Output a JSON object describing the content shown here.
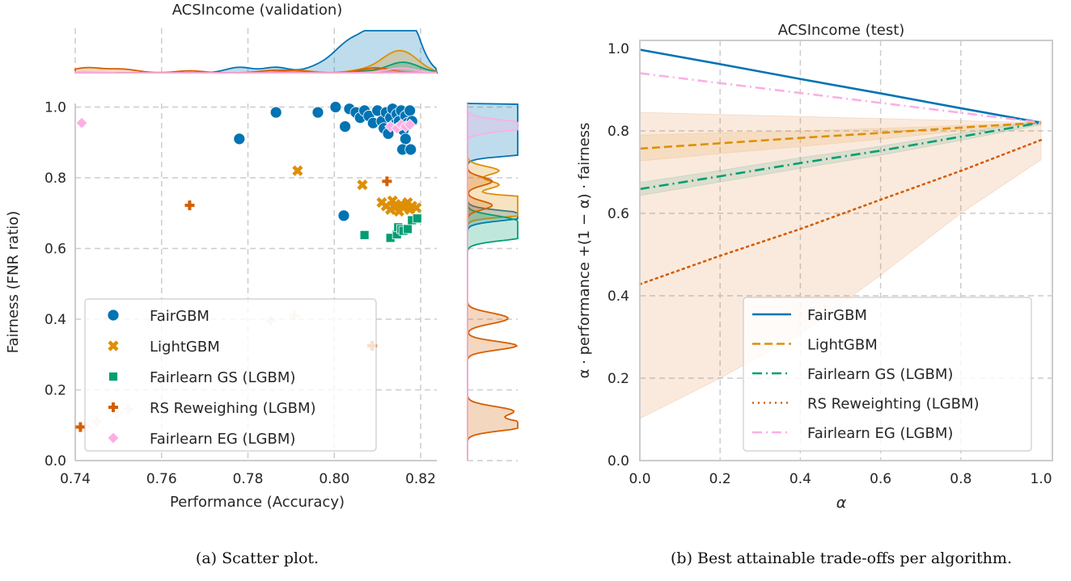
{
  "colors": {
    "FairGBM": "#0173b2",
    "LightGBM": "#de8f05",
    "Fairlearn GS (LGBM)": "#029e73",
    "RS": "#d55e00",
    "Fairlearn EG (LGBM)": "#fbafe4",
    "grid": "#cccccc",
    "axis": "#cccccc"
  },
  "captions": {
    "a": "(a) Scatter plot.",
    "b": "(b) Best attainable trade-offs per algorithm."
  },
  "chart_data": [
    {
      "type": "scatter",
      "title": "ACSIncome (validation)",
      "xlabel": "Performance (Accuracy)",
      "ylabel": "Fairness (FNR ratio)",
      "xlim": [
        0.74,
        0.8237
      ],
      "ylim": [
        0.0,
        1.01
      ],
      "xticks": [
        "0.74",
        "0.76",
        "0.78",
        "0.80",
        "0.82"
      ],
      "yticks": [
        "0.0",
        "0.2",
        "0.4",
        "0.6",
        "0.8",
        "1.0"
      ],
      "grid": true,
      "legend_position": "lower-left",
      "marginals": "kde on top (x) and right (y)",
      "series": [
        {
          "name": "FairGBM",
          "marker": "circle",
          "points": [
            [
              0.778,
              0.91
            ],
            [
              0.7865,
              0.985
            ],
            [
              0.7962,
              0.985
            ],
            [
              0.8003,
              1.0
            ],
            [
              0.8025,
              0.945
            ],
            [
              0.8022,
              0.693
            ],
            [
              0.8035,
              0.995
            ],
            [
              0.805,
              0.985
            ],
            [
              0.806,
              0.97
            ],
            [
              0.807,
              0.99
            ],
            [
              0.808,
              0.975
            ],
            [
              0.809,
              0.955
            ],
            [
              0.81,
              0.99
            ],
            [
              0.811,
              0.96
            ],
            [
              0.8115,
              0.94
            ],
            [
              0.812,
              0.985
            ],
            [
              0.8125,
              0.925
            ],
            [
              0.813,
              0.97
            ],
            [
              0.8135,
              0.995
            ],
            [
              0.814,
              0.95
            ],
            [
              0.8145,
              0.98
            ],
            [
              0.815,
              0.96
            ],
            [
              0.8155,
              0.99
            ],
            [
              0.816,
              0.935
            ],
            [
              0.8165,
              0.975
            ],
            [
              0.817,
              0.955
            ],
            [
              0.8175,
              0.99
            ],
            [
              0.8165,
              0.91
            ],
            [
              0.8158,
              0.88
            ],
            [
              0.8177,
              0.88
            ],
            [
              0.818,
              0.96
            ]
          ]
        },
        {
          "name": "LightGBM",
          "marker": "x",
          "points": [
            [
              0.7915,
              0.82
            ],
            [
              0.8065,
              0.78
            ],
            [
              0.811,
              0.73
            ],
            [
              0.812,
              0.72
            ],
            [
              0.813,
              0.71
            ],
            [
              0.8135,
              0.735
            ],
            [
              0.814,
              0.715
            ],
            [
              0.815,
              0.705
            ],
            [
              0.8155,
              0.725
            ],
            [
              0.816,
              0.715
            ],
            [
              0.817,
              0.73
            ],
            [
              0.8175,
              0.71
            ],
            [
              0.818,
              0.72
            ],
            [
              0.819,
              0.715
            ]
          ]
        },
        {
          "name": "Fairlearn GS (LGBM)",
          "marker": "square",
          "points": [
            [
              0.807,
              0.638
            ],
            [
              0.813,
              0.63
            ],
            [
              0.8145,
              0.64
            ],
            [
              0.8148,
              0.66
            ],
            [
              0.8155,
              0.655
            ],
            [
              0.816,
              0.65
            ],
            [
              0.817,
              0.655
            ],
            [
              0.818,
              0.68
            ],
            [
              0.8192,
              0.685
            ]
          ]
        },
        {
          "name": "RS Reweighing (LGBM)",
          "marker": "plus",
          "points": [
            [
              0.7665,
              0.722
            ],
            [
              0.8122,
              0.79
            ],
            [
              0.7412,
              0.095
            ],
            [
              0.8088,
              0.325
            ]
          ],
          "faded_points": [
            [
              0.7425,
              0.097
            ],
            [
              0.745,
              0.11
            ],
            [
              0.7497,
              0.135
            ],
            [
              0.7523,
              0.145
            ],
            [
              0.7852,
              0.395
            ],
            [
              0.7908,
              0.41
            ],
            [
              0.8085,
              0.325
            ]
          ]
        },
        {
          "name": "Fairlearn EG (LGBM)",
          "marker": "diamond",
          "points": [
            [
              0.7415,
              0.955
            ],
            [
              0.813,
              0.945
            ],
            [
              0.8145,
              0.94
            ],
            [
              0.8155,
              0.95
            ],
            [
              0.8165,
              0.945
            ],
            [
              0.8175,
              0.95
            ]
          ]
        }
      ]
    },
    {
      "type": "line",
      "title": "ACSIncome (test)",
      "xlabel": "α",
      "ylabel": "α · performance +(1 − α) · fairness",
      "xlim": [
        0.0,
        1.0
      ],
      "ylim": [
        0.0,
        1.02
      ],
      "xticks": [
        "0.0",
        "0.2",
        "0.4",
        "0.6",
        "0.8",
        "1.0"
      ],
      "yticks": [
        "0.0",
        "0.2",
        "0.4",
        "0.6",
        "0.8",
        "1.0"
      ],
      "grid": true,
      "legend_position": "lower-right",
      "x": [
        0.0,
        0.2,
        0.4,
        0.6,
        0.8,
        1.0
      ],
      "series": [
        {
          "name": "FairGBM",
          "style": "solid",
          "values": [
            0.997,
            0.962,
            0.926,
            0.891,
            0.855,
            0.82
          ]
        },
        {
          "name": "LightGBM",
          "style": "dashed",
          "values": [
            0.757,
            0.77,
            0.783,
            0.795,
            0.808,
            0.82
          ],
          "band_low": [
            0.727,
            0.745,
            0.762,
            0.78,
            0.8,
            0.82
          ],
          "band_high": [
            0.79,
            0.795,
            0.8,
            0.806,
            0.813,
            0.82
          ]
        },
        {
          "name": "Fairlearn GS (LGBM)",
          "style": "dashdot",
          "values": [
            0.659,
            0.69,
            0.722,
            0.752,
            0.786,
            0.82
          ],
          "band_low": [
            0.643,
            0.676,
            0.709,
            0.741,
            0.777,
            0.815
          ],
          "band_high": [
            0.675,
            0.704,
            0.735,
            0.763,
            0.795,
            0.825
          ]
        },
        {
          "name": "RS Reweighting (LGBM)",
          "style": "dotted",
          "values": [
            0.428,
            0.497,
            0.562,
            0.633,
            0.703,
            0.778
          ],
          "band_low": [
            0.102,
            0.2,
            0.307,
            0.45,
            0.6,
            0.73
          ],
          "band_high": [
            0.845,
            0.84,
            0.835,
            0.83,
            0.825,
            0.82
          ]
        },
        {
          "name": "Fairlearn EG (LGBM)",
          "style": "dashdot",
          "values": [
            0.94,
            0.916,
            0.892,
            0.868,
            0.844,
            0.82
          ]
        }
      ]
    }
  ]
}
